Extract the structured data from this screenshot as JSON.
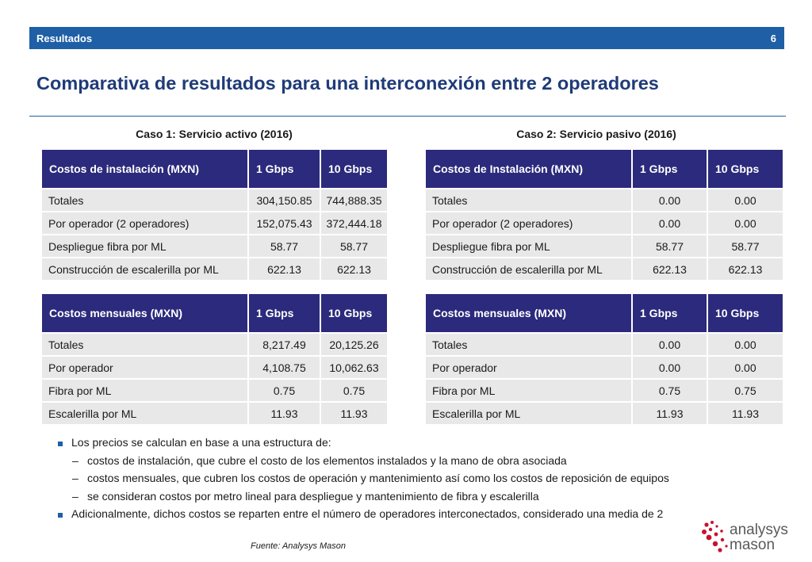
{
  "header": {
    "section": "Resultados",
    "page_number": "6"
  },
  "title": "Comparativa de resultados para una interconexión entre 2 operadores",
  "case1": {
    "title": "Caso 1: Servicio activo (2016)",
    "install": {
      "headers": [
        "Costos de instalación (MXN)",
        "1 Gbps",
        "10 Gbps"
      ],
      "rows": [
        [
          "Totales",
          "304,150.85",
          "744,888.35"
        ],
        [
          "Por operador (2 operadores)",
          "152,075.43",
          "372,444.18"
        ],
        [
          "Despliegue fibra por ML",
          "58.77",
          "58.77"
        ],
        [
          "Construcción de escalerilla por ML",
          "622.13",
          "622.13"
        ]
      ]
    },
    "monthly": {
      "headers": [
        "Costos mensuales (MXN)",
        "1 Gbps",
        "10 Gbps"
      ],
      "rows": [
        [
          "Totales",
          "8,217.49",
          "20,125.26"
        ],
        [
          "Por operador",
          "4,108.75",
          "10,062.63"
        ],
        [
          "Fibra por ML",
          "0.75",
          "0.75"
        ],
        [
          "Escalerilla por ML",
          "11.93",
          "11.93"
        ]
      ]
    }
  },
  "case2": {
    "title": "Caso 2: Servicio pasivo (2016)",
    "install": {
      "headers": [
        "Costos de Instalación (MXN)",
        "1 Gbps",
        "10 Gbps"
      ],
      "rows": [
        [
          "Totales",
          "0.00",
          "0.00"
        ],
        [
          "Por operador (2 operadores)",
          "0.00",
          "0.00"
        ],
        [
          "Despliegue fibra por ML",
          "58.77",
          "58.77"
        ],
        [
          "Construcción de escalerilla por ML",
          "622.13",
          "622.13"
        ]
      ]
    },
    "monthly": {
      "headers": [
        "Costos mensuales (MXN)",
        "1 Gbps",
        "10 Gbps"
      ],
      "rows": [
        [
          "Totales",
          "0.00",
          "0.00"
        ],
        [
          "Por operador",
          "0.00",
          "0.00"
        ],
        [
          "Fibra por ML",
          "0.75",
          "0.75"
        ],
        [
          "Escalerilla por ML",
          "11.93",
          "11.93"
        ]
      ]
    }
  },
  "bullets": {
    "main1": "Los precios se calculan en base a una estructura de:",
    "dash_marker": "–",
    "sub1": "costos de instalación, que cubre el costo de los elementos instalados y la mano de obra asociada",
    "sub2": "costos mensuales, que cubren los costos de operación y mantenimiento así como los costos de reposición de equipos",
    "sub3": "se consideran costos por metro lineal para despliegue y mantenimiento de fibra y escalerilla",
    "main2": "Adicionalmente, dichos costos se reparten entre el número de operadores interconectados, considerado una media de 2"
  },
  "source": "Fuente: Analysys Mason",
  "logo": {
    "line1": "analysys",
    "line2": "mason",
    "dot_color": "#c8102e"
  }
}
